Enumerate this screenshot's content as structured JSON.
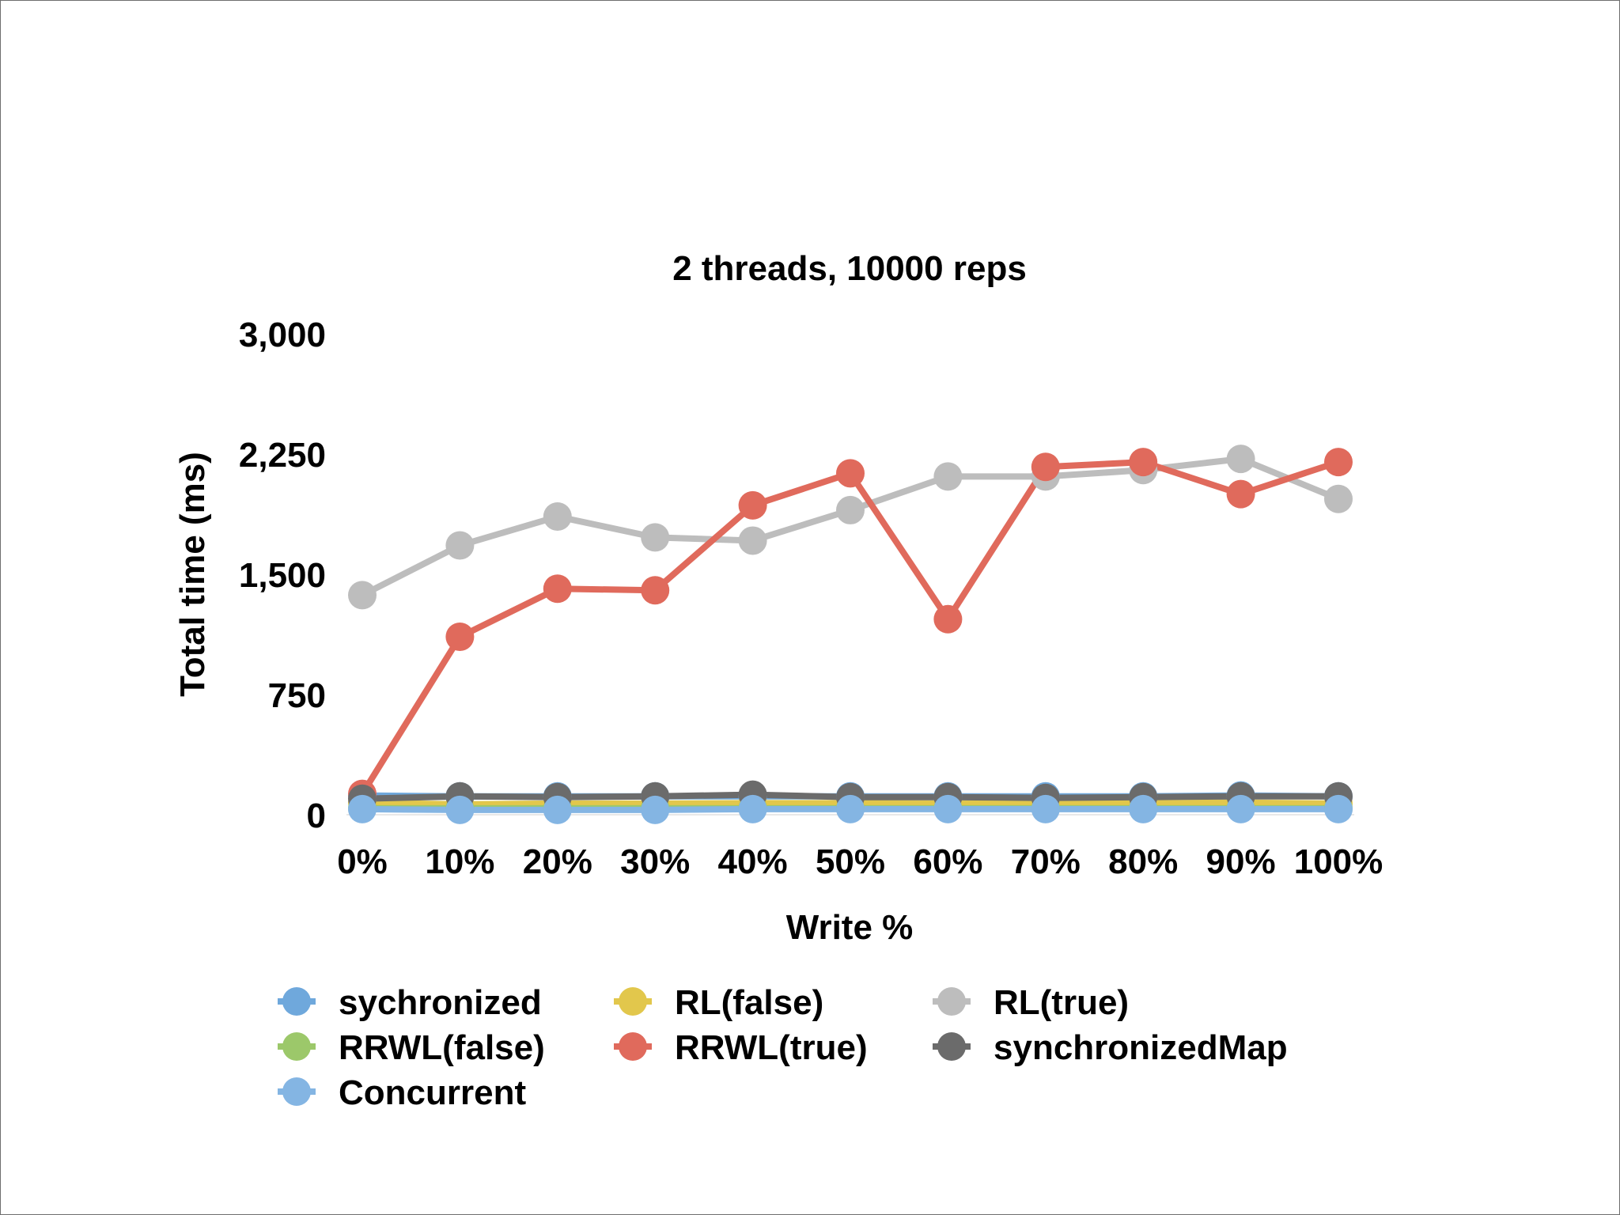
{
  "chart_data": {
    "type": "line",
    "title": "2 threads, 10000 reps",
    "xlabel": "Write %",
    "ylabel": "Total time (ms)",
    "categories": [
      "0%",
      "10%",
      "20%",
      "30%",
      "40%",
      "50%",
      "60%",
      "70%",
      "80%",
      "90%",
      "100%"
    ],
    "yticks": [
      "0",
      "750",
      "1,500",
      "2,250",
      "3,000"
    ],
    "ytick_values": [
      0,
      750,
      1500,
      2250,
      3000
    ],
    "ylim": [
      0,
      3000
    ],
    "grid": false,
    "legend_position": "bottom",
    "series": [
      {
        "name": "sychronized",
        "color": "#6fa8dc",
        "values": [
          120,
          115,
          115,
          115,
          115,
          115,
          115,
          115,
          115,
          120,
          115
        ]
      },
      {
        "name": "RL(false)",
        "color": "#e2c74c",
        "values": [
          75,
          65,
          70,
          70,
          72,
          72,
          70,
          70,
          72,
          75,
          70
        ]
      },
      {
        "name": "RL(true)",
        "color": "#bdbdbd",
        "values": [
          1370,
          1680,
          1860,
          1730,
          1710,
          1900,
          2110,
          2110,
          2150,
          2220,
          1970
        ]
      },
      {
        "name": "RRWL(false)",
        "color": "#9cc86a",
        "values": [
          40,
          40,
          40,
          40,
          40,
          40,
          40,
          40,
          40,
          40,
          40
        ]
      },
      {
        "name": "RRWL(true)",
        "color": "#e06a5c",
        "values": [
          130,
          1110,
          1410,
          1400,
          1930,
          2130,
          1220,
          2170,
          2200,
          2000,
          2200
        ]
      },
      {
        "name": "synchronizedMap",
        "color": "#6b6b6b",
        "values": [
          100,
          115,
          110,
          115,
          125,
          110,
          110,
          105,
          110,
          115,
          115
        ]
      },
      {
        "name": "Concurrent",
        "color": "#84b5e3",
        "values": [
          35,
          30,
          30,
          30,
          35,
          35,
          35,
          35,
          35,
          35,
          35
        ]
      }
    ]
  }
}
